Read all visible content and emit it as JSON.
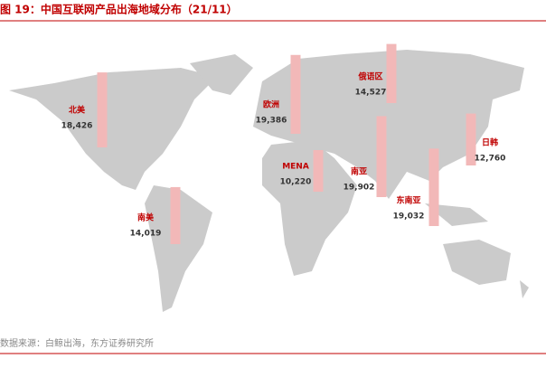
{
  "chart_data": {
    "type": "map-bar",
    "title": "图 19：中国互联网产品出海地域分布（21/11）",
    "source": "数据来源：白鲸出海，东方证券研究所",
    "categories": [
      "北美",
      "欧洲",
      "俄语区",
      "日韩",
      "MENA",
      "南亚",
      "东南亚",
      "南美"
    ],
    "values": [
      18426,
      19386,
      14527,
      12760,
      10220,
      19902,
      19032,
      14019
    ],
    "value_labels": [
      "18,426",
      "19,386",
      "14,527",
      "12,760",
      "10,220",
      "19,902",
      "19,032",
      "14,019"
    ],
    "color": "#f2b8b8"
  }
}
